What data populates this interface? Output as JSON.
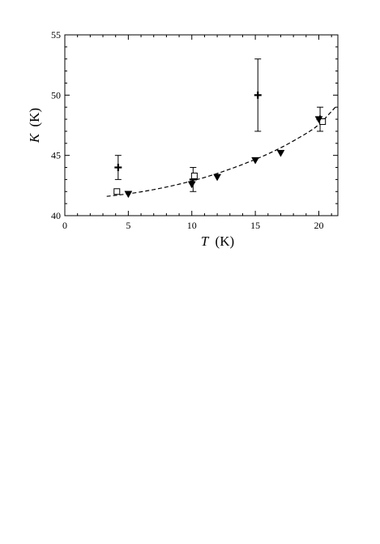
{
  "chart_data": {
    "type": "scatter",
    "xlim": [
      0,
      21.5
    ],
    "ylim": [
      40,
      55
    ],
    "xticks": [
      0,
      5,
      10,
      15,
      20
    ],
    "yticks": [
      40,
      45,
      50,
      55
    ],
    "xlabel_symbol": "T",
    "xlabel_unit": "(K)",
    "ylabel_symbol": "K",
    "ylabel_unit": "(K)",
    "grid": false,
    "series": [
      {
        "marker": "plus",
        "points": [
          {
            "x": 4.2,
            "y": 44.0,
            "yerr": 1.0
          },
          {
            "x": 10.1,
            "y": 43.0,
            "yerr": 1.0
          },
          {
            "x": 15.2,
            "y": 50.0,
            "yerr": 3.0
          },
          {
            "x": 20.1,
            "y": 48.0,
            "yerr": 1.0
          }
        ]
      },
      {
        "marker": "open-square",
        "points": [
          {
            "x": 4.1,
            "y": 42.0
          },
          {
            "x": 10.2,
            "y": 43.3
          },
          {
            "x": 20.3,
            "y": 47.8
          }
        ]
      },
      {
        "marker": "filled-down-triangle",
        "points": [
          {
            "x": 5.0,
            "y": 41.8
          },
          {
            "x": 10.0,
            "y": 42.6
          },
          {
            "x": 12.0,
            "y": 43.2
          },
          {
            "x": 15.0,
            "y": 44.6
          },
          {
            "x": 17.0,
            "y": 45.2
          },
          {
            "x": 20.0,
            "y": 48.0
          }
        ]
      }
    ],
    "fit_curve": {
      "style": "dashed",
      "points": [
        {
          "x": 3.3,
          "y": 41.6
        },
        {
          "x": 5,
          "y": 41.8
        },
        {
          "x": 7,
          "y": 42.15
        },
        {
          "x": 9,
          "y": 42.6
        },
        {
          "x": 11,
          "y": 43.15
        },
        {
          "x": 13,
          "y": 43.85
        },
        {
          "x": 15,
          "y": 44.65
        },
        {
          "x": 17,
          "y": 45.6
        },
        {
          "x": 19,
          "y": 46.8
        },
        {
          "x": 20,
          "y": 47.5
        },
        {
          "x": 21.3,
          "y": 49.0
        }
      ]
    }
  }
}
